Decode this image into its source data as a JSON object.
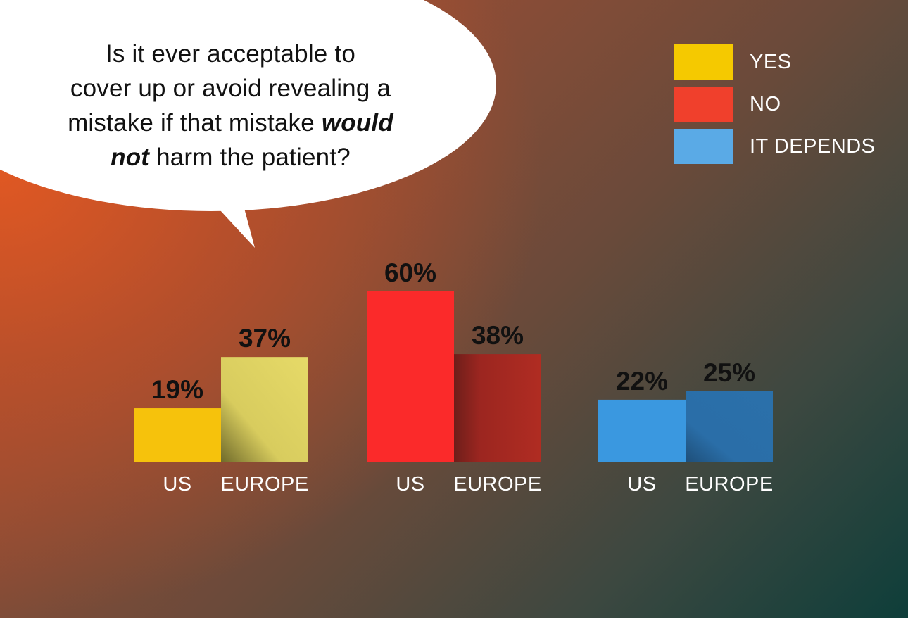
{
  "question": {
    "line1": "Is it ever acceptable to",
    "line2": "cover up or avoid revealing a",
    "line3_prefix": "mistake if that mistake ",
    "line3_emphasis": "would",
    "line4_emphasis": "not",
    "line4_suffix": " harm the patient?"
  },
  "legend": [
    {
      "label": "YES",
      "color": "#f5c900"
    },
    {
      "label": "NO",
      "color": "#f0402c"
    },
    {
      "label": "IT DEPENDS",
      "color": "#5aaae6"
    }
  ],
  "chart_data": {
    "type": "bar",
    "categories": [
      "US",
      "EUROPE"
    ],
    "series": [
      {
        "name": "YES",
        "values": [
          19,
          37
        ],
        "labels": [
          "19%",
          "37%"
        ],
        "colors": [
          "#f6c20c",
          "#e5d967"
        ]
      },
      {
        "name": "NO",
        "values": [
          60,
          38
        ],
        "labels": [
          "60%",
          "38%"
        ],
        "colors": [
          "#fb2a2a",
          "#a82a22"
        ]
      },
      {
        "name": "IT DEPENDS",
        "values": [
          22,
          25
        ],
        "labels": [
          "22%",
          "25%"
        ],
        "colors": [
          "#3a98e0",
          "#2a6ea8"
        ]
      }
    ],
    "title": "",
    "xlabel": "",
    "ylabel": "",
    "ylim": [
      0,
      60
    ],
    "grid": false,
    "legend_position": "top-right"
  }
}
